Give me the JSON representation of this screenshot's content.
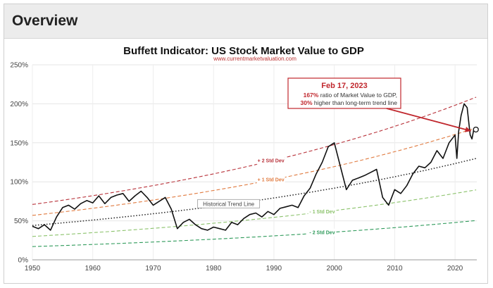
{
  "header": {
    "title": "Overview"
  },
  "chart_data": {
    "type": "line",
    "title": "Buffett Indicator: US Stock Market Value to GDP",
    "subtitle": "www.currentmarketvaluation.com",
    "xlim": [
      1950,
      2023.6
    ],
    "ylim": [
      0,
      250
    ],
    "x_ticks": [
      1950,
      1960,
      1970,
      1980,
      1990,
      2000,
      2010,
      2020
    ],
    "y_ticks": [
      0,
      50,
      100,
      150,
      200,
      250
    ],
    "y_tick_labels": [
      "0%",
      "50%",
      "100%",
      "150%",
      "200%",
      "250%"
    ],
    "grid": true,
    "colors": {
      "ratio": "#111111",
      "trend": "#222222",
      "plus2": "#b8323a",
      "plus1": "#e07a3f",
      "minus1": "#8bc26b",
      "minus2": "#2e9a5a",
      "callout": "#c0272d"
    },
    "series": [
      {
        "name": "ratio",
        "x": [
          1950,
          1951,
          1952,
          1953,
          1954,
          1955,
          1956,
          1957,
          1958,
          1959,
          1960,
          1961,
          1962,
          1963,
          1964,
          1965,
          1966,
          1967,
          1968,
          1969,
          1970,
          1971,
          1972,
          1973,
          1974,
          1975,
          1976,
          1977,
          1978,
          1979,
          1980,
          1981,
          1982,
          1983,
          1984,
          1985,
          1986,
          1987,
          1988,
          1989,
          1990,
          1991,
          1992,
          1993,
          1994,
          1995,
          1996,
          1997,
          1998,
          1999,
          2000,
          2001,
          2002,
          2003,
          2004,
          2005,
          2006,
          2007,
          2008,
          2009,
          2010,
          2011,
          2012,
          2013,
          2014,
          2015,
          2016,
          2017,
          2018,
          2019,
          2020,
          2020.3,
          2020.6,
          2021,
          2021.5,
          2022,
          2022.5,
          2022.8,
          2023.1
        ],
        "y": [
          43,
          40,
          45,
          38,
          55,
          67,
          70,
          65,
          72,
          76,
          73,
          82,
          72,
          80,
          83,
          85,
          75,
          82,
          88,
          80,
          70,
          75,
          80,
          65,
          40,
          48,
          52,
          45,
          40,
          38,
          42,
          40,
          38,
          48,
          45,
          53,
          58,
          60,
          55,
          62,
          58,
          66,
          68,
          70,
          67,
          82,
          92,
          110,
          125,
          145,
          150,
          120,
          90,
          102,
          105,
          108,
          112,
          116,
          80,
          70,
          90,
          85,
          95,
          110,
          120,
          118,
          125,
          140,
          130,
          150,
          160,
          130,
          165,
          185,
          200,
          195,
          160,
          155,
          167
        ]
      }
    ],
    "trend_lines": [
      {
        "name": "+2 Std Dev",
        "label": "+ 2 Std Dev",
        "label_x": 1989.5,
        "y1950": 71,
        "y2023": 207
      },
      {
        "name": "+1 Std Dev",
        "label": "+ 1 Std Dev",
        "label_x": 1989.5,
        "y1950": 57,
        "y2023": 168
      },
      {
        "name": "Historical Trend Line",
        "label": "Historical Trend Line",
        "label_x": 1982.5,
        "y1950": 44,
        "y2023": 129
      },
      {
        "name": "-1 Std Dev",
        "label": "- 1 Std Dev",
        "label_x": 1998,
        "y1950": 30,
        "y2023": 89
      },
      {
        "name": "-2 Std Dev",
        "label": "- 2 Std Dev",
        "label_x": 1998,
        "y1950": 17,
        "y2023": 50
      }
    ],
    "annotation": {
      "date": "Feb 17, 2023",
      "line1_bold": "167%",
      "line1_rest": " ratio of Market Value to GDP,",
      "line2_bold": "30%",
      "line2_rest": " higher than long-term trend line",
      "point_x": 2023.1,
      "point_y": 167
    }
  }
}
